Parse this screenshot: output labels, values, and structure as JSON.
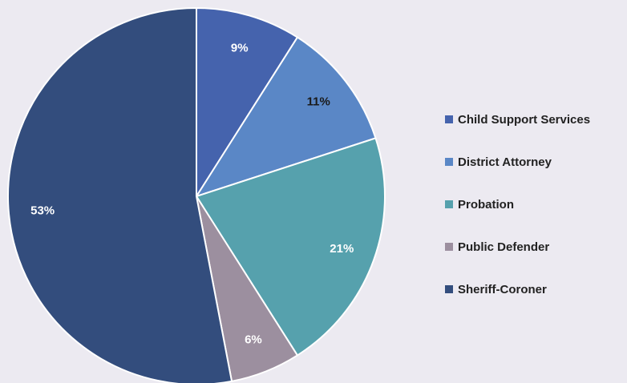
{
  "chart_data": {
    "type": "pie",
    "categories": [
      "Child Support Services",
      "District Attorney",
      "Probation",
      "Public Defender",
      "Sheriff-Coroner"
    ],
    "values": [
      9,
      11,
      21,
      6,
      53
    ],
    "data_labels": [
      "9%",
      "11%",
      "21%",
      "6%",
      "53%"
    ],
    "colors": [
      "#4563ad",
      "#5a87c6",
      "#56a1ad",
      "#9c8f9f",
      "#334d7d"
    ],
    "label_colors": [
      "#ffffff",
      "#1a1a1a",
      "#ffffff",
      "#ffffff",
      "#ffffff"
    ],
    "legend_position": "right"
  }
}
